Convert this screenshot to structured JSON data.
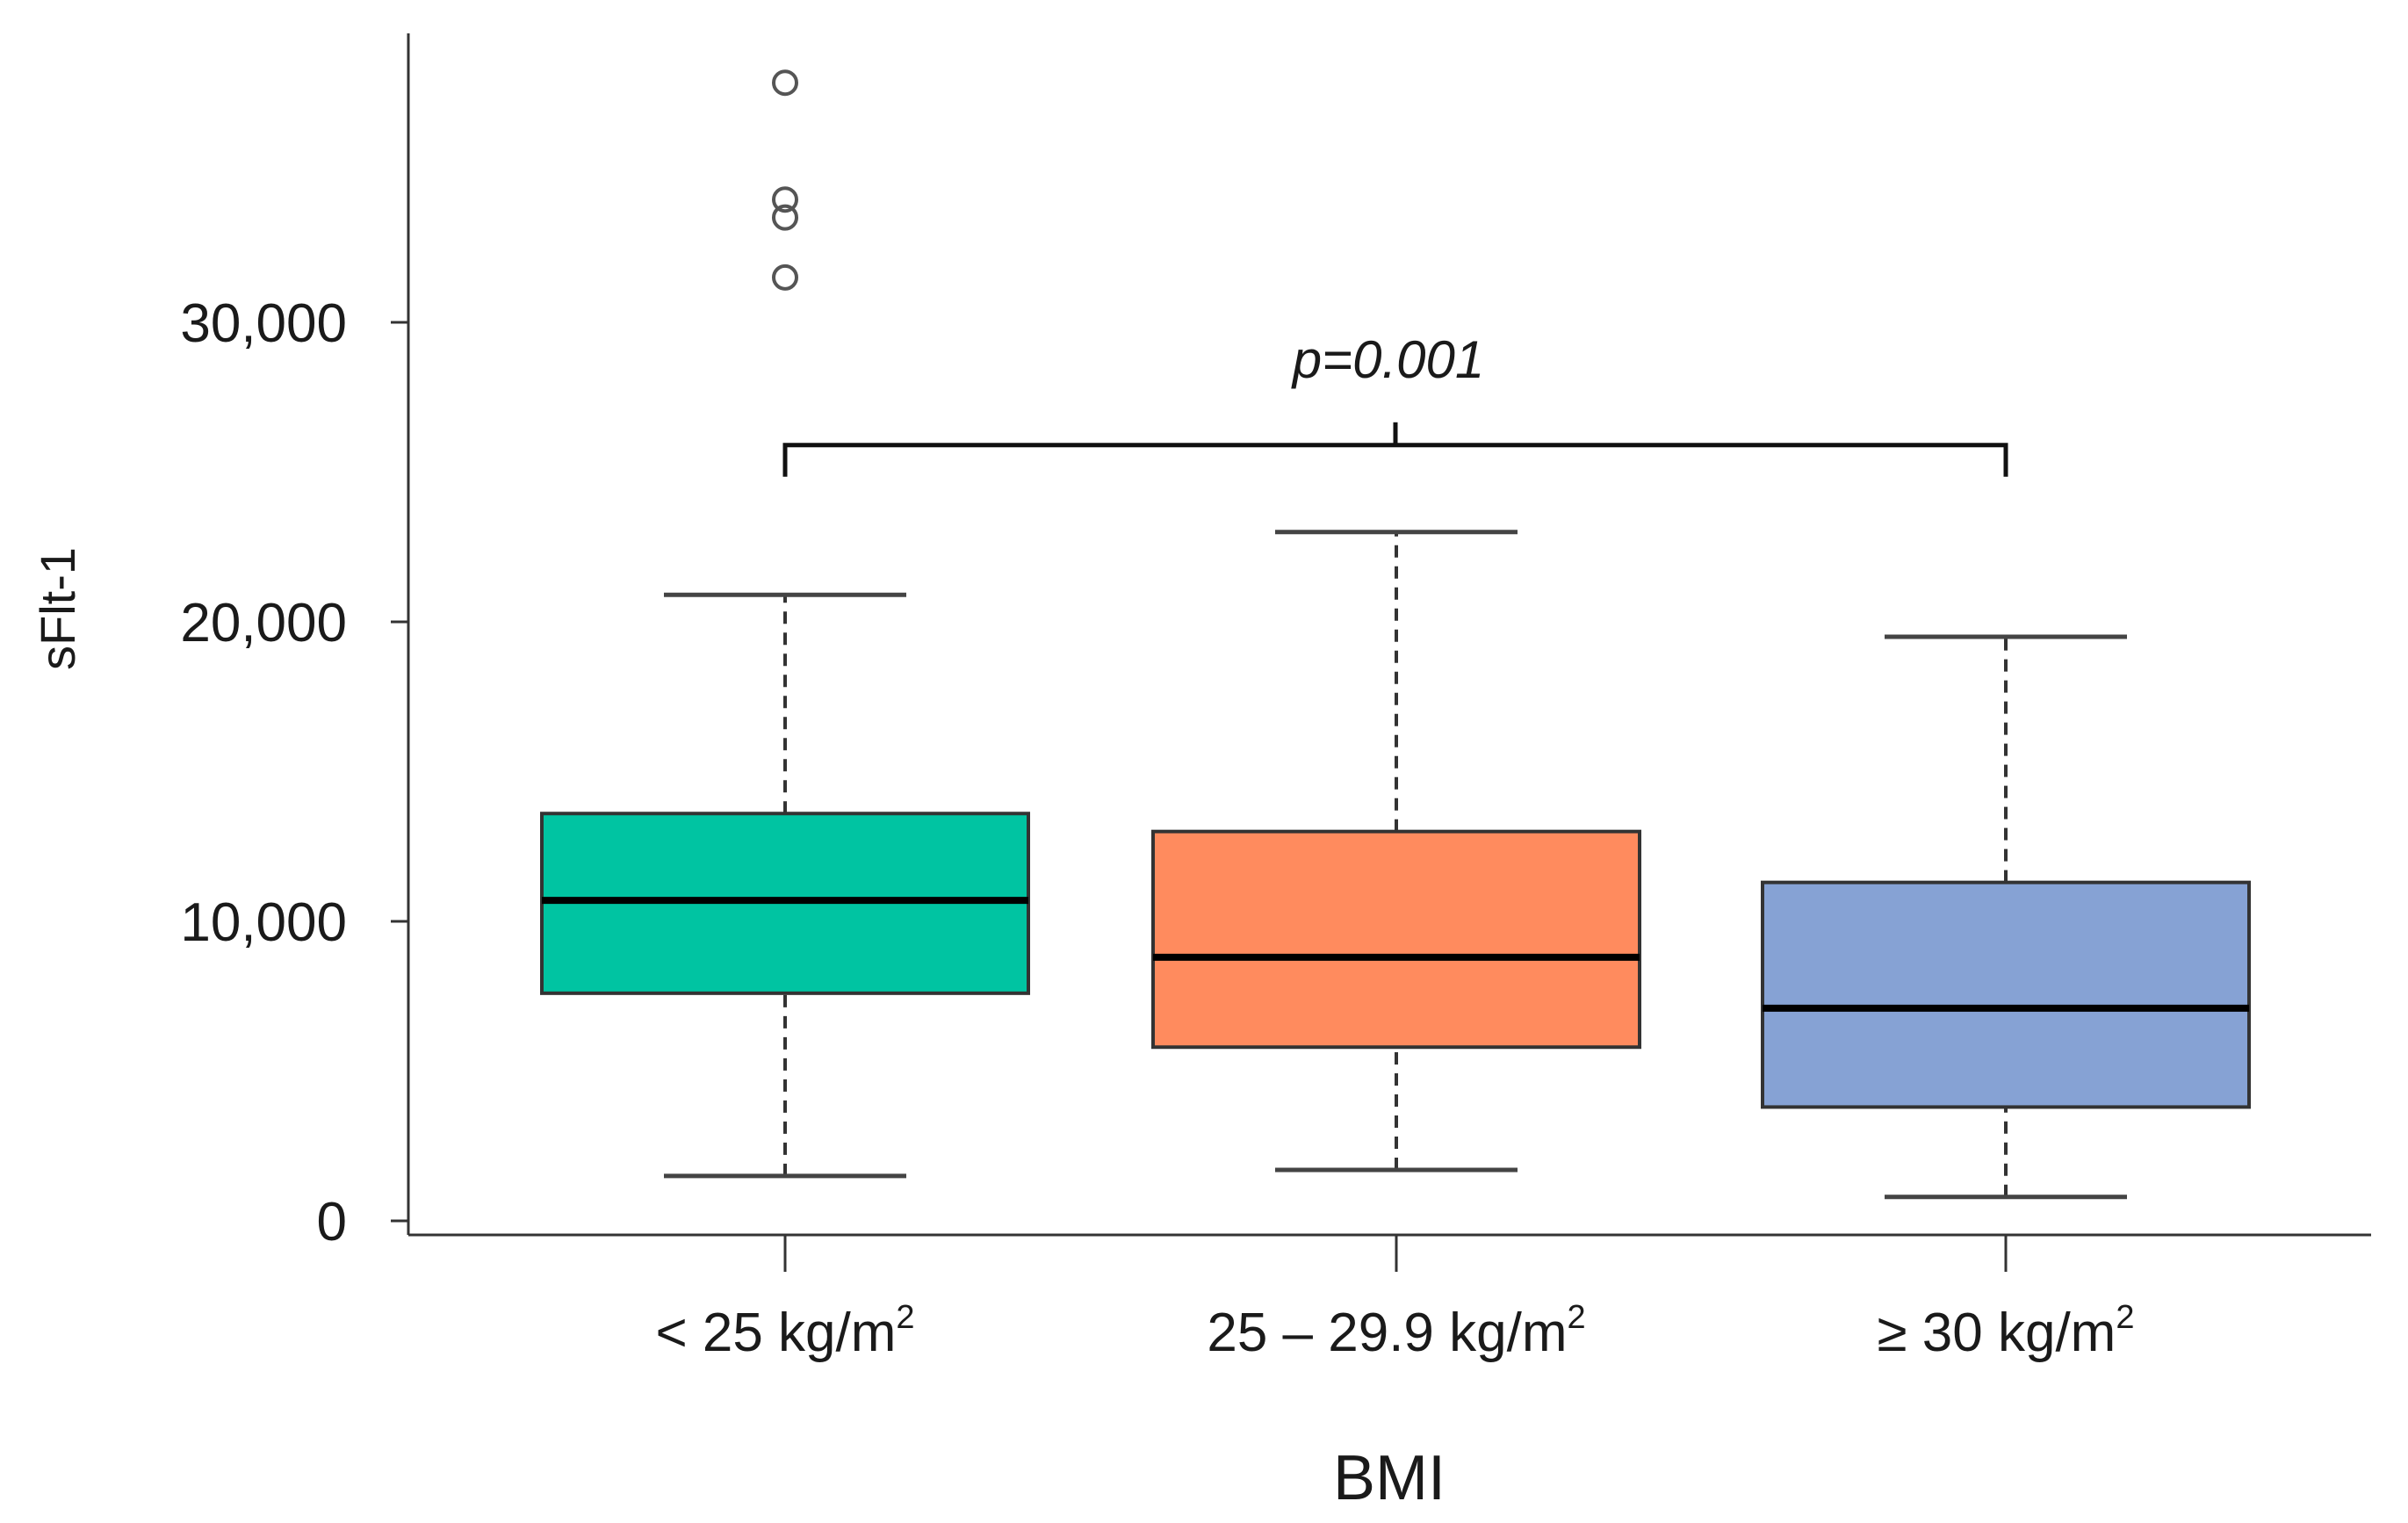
{
  "chart_data": {
    "type": "boxplot",
    "title": "",
    "xlabel": "BMI",
    "ylabel": "sFlt-1",
    "ylim": [
      0,
      40000
    ],
    "yticks": [
      {
        "value": 0,
        "label": "0"
      },
      {
        "value": 10000,
        "label": "10,000"
      },
      {
        "value": 20000,
        "label": "20,000"
      },
      {
        "value": 30000,
        "label": "30,000"
      }
    ],
    "categories": [
      {
        "base": "< 25 kg/m",
        "sup": "2"
      },
      {
        "base": "25 – 29.9 kg/m",
        "sup": "2"
      },
      {
        "base": "≥ 30 kg/m",
        "sup": "2"
      }
    ],
    "boxes": [
      {
        "name": "< 25 kg/m²",
        "min": 1500,
        "q1": 7600,
        "median": 10700,
        "q3": 13600,
        "max": 20900,
        "outliers": [
          31500,
          33500,
          34100,
          38000
        ],
        "color": "#00C4A2"
      },
      {
        "name": "25 – 29.9 kg/m²",
        "min": 1700,
        "q1": 5800,
        "median": 8800,
        "q3": 13000,
        "max": 23000,
        "outliers": [],
        "color": "#FF8B5E"
      },
      {
        "name": "≥ 30 kg/m²",
        "min": 800,
        "q1": 3800,
        "median": 7100,
        "q3": 11300,
        "max": 19500,
        "outliers": [],
        "color": "#86A2D4"
      }
    ],
    "annotation": {
      "text": "p=0.001",
      "from": 0,
      "to": 2,
      "y": 25900
    }
  }
}
